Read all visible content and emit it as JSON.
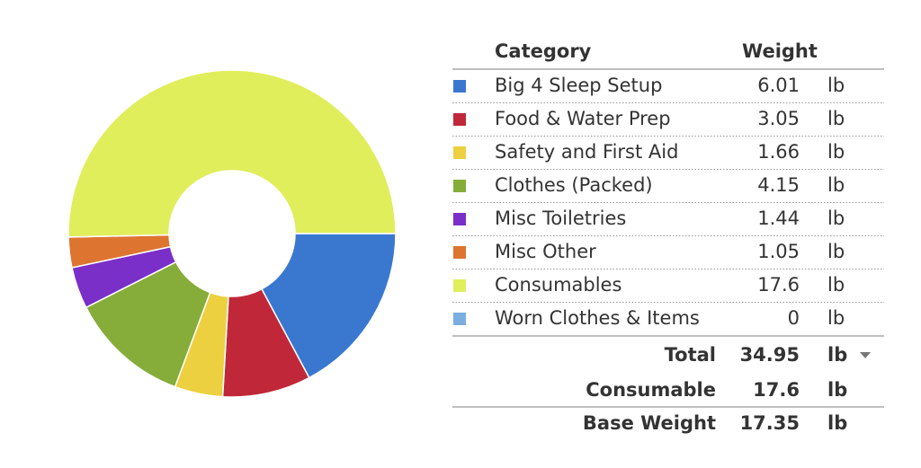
{
  "chart_data": {
    "type": "donut",
    "categories": [
      "Big 4 Sleep Setup",
      "Food & Water Prep",
      "Safety and First Aid",
      "Clothes (Packed)",
      "Misc Toiletries",
      "Misc Other",
      "Consumables",
      "Worn Clothes & Items"
    ],
    "values": [
      6.01,
      3.05,
      1.66,
      4.15,
      1.44,
      1.05,
      17.6,
      0
    ],
    "colors": [
      "#3a78d0",
      "#c0283a",
      "#ecd040",
      "#86ad3a",
      "#7a2fc8",
      "#dd7430",
      "#e0ee5c",
      "#7aaee0"
    ]
  },
  "table": {
    "headers": [
      "Category",
      "Weight"
    ],
    "unit": "lb",
    "total": {
      "label": "Total",
      "value": 34.95
    },
    "consumable": {
      "label": "Consumable",
      "value": 17.6
    },
    "base_weight": {
      "label": "Base Weight",
      "value": 17.35
    }
  }
}
